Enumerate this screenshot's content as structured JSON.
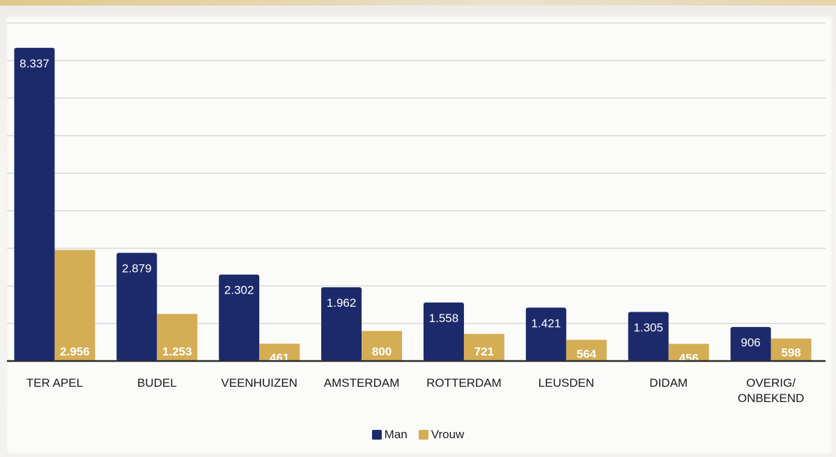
{
  "chart_data": {
    "type": "bar",
    "categories": [
      "TER APEL",
      "BUDEL",
      "VEENHUIZEN",
      "AMSTERDAM",
      "ROTTERDAM",
      "LEUSDEN",
      "DIDAM",
      "OVERIG/\nONBEKEND"
    ],
    "series": [
      {
        "name": "Man",
        "color": "#1c2a6b",
        "values": [
          8337,
          2879,
          2302,
          1962,
          1558,
          1421,
          1305,
          906
        ],
        "labels": [
          "8.337",
          "2.879",
          "2.302",
          "1.962",
          "1.558",
          "1.421",
          "1.305",
          "906"
        ]
      },
      {
        "name": "Vrouw",
        "color": "#d4ad55",
        "values": [
          2956,
          1253,
          461,
          800,
          721,
          564,
          456,
          598
        ],
        "labels": [
          "2.956",
          "1.253",
          "461",
          "800",
          "721",
          "564",
          "456",
          "598"
        ]
      }
    ],
    "ylim": [
      0,
      9000
    ],
    "grid": true,
    "legend_position": "bottom-center"
  }
}
